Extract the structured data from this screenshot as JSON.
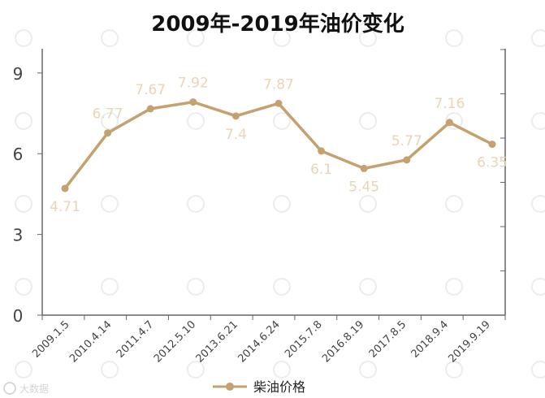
{
  "chart_data": {
    "type": "line",
    "title": "2009年-2019年油价变化",
    "categories": [
      "2009.1.5",
      "2010.4.14",
      "2011.4.7",
      "2012.5.10",
      "2013.6.21",
      "2014.6.24",
      "2015.7.8",
      "2016.8.19",
      "2017.8.5",
      "2018.9.4",
      "2019.9.19"
    ],
    "series": [
      {
        "name": "柴油价格",
        "values": [
          4.71,
          6.77,
          7.67,
          7.92,
          7.4,
          7.87,
          6.1,
          5.45,
          5.77,
          7.16,
          6.35
        ],
        "color": "#c4a16f"
      }
    ],
    "value_labels": [
      "4.71",
      "6.77",
      "7.67",
      "7.92",
      "7.4",
      "7.87",
      "6.1",
      "5.45",
      "5.77",
      "7.16",
      "6.35"
    ],
    "yticks": [
      "0",
      "3",
      "6",
      "9"
    ],
    "ylim": [
      0,
      9.9
    ],
    "xlabel": "",
    "ylabel": "",
    "legend_position": "bottom",
    "grid": false,
    "line_color": "#c4a16f",
    "label_color": "#e9d4b6",
    "watermark": "大数据"
  }
}
